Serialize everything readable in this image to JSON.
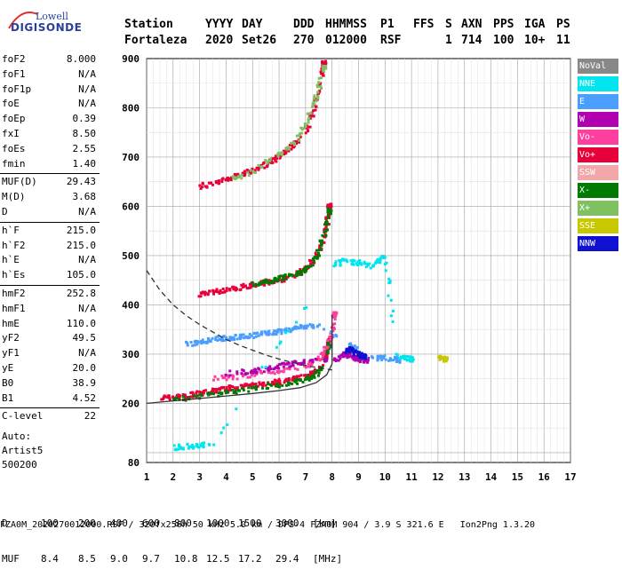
{
  "logo": {
    "brand_top": "Lowell",
    "brand_bottom": "DIGISONDE"
  },
  "header": {
    "labels": [
      "Station",
      "YYYY",
      "DAY",
      "DDD",
      "HHMMSS",
      "P1",
      "FFS",
      "S",
      "AXN",
      "PPS",
      "IGA",
      "PS"
    ],
    "values": [
      "Fortaleza",
      "2020",
      "Set26",
      "270",
      "012000",
      "RSF",
      "",
      "1",
      "714",
      "100",
      "10+",
      "11"
    ]
  },
  "params": [
    {
      "name": "foF2",
      "value": "8.000"
    },
    {
      "name": "foF1",
      "value": "N/A"
    },
    {
      "name": "foF1p",
      "value": "N/A"
    },
    {
      "name": "foE",
      "value": "N/A"
    },
    {
      "name": "foEp",
      "value": "0.39"
    },
    {
      "name": "fxI",
      "value": "8.50"
    },
    {
      "name": "foEs",
      "value": "2.55"
    },
    {
      "name": "fmin",
      "value": "1.40"
    },
    {
      "name": "MUF(D)",
      "value": "29.43"
    },
    {
      "name": "M(D)",
      "value": "3.68"
    },
    {
      "name": "D",
      "value": "N/A"
    },
    {
      "name": "h`F",
      "value": "215.0"
    },
    {
      "name": "h`F2",
      "value": "215.0"
    },
    {
      "name": "h`E",
      "value": "N/A"
    },
    {
      "name": "h`Es",
      "value": "105.0"
    },
    {
      "name": "hmF2",
      "value": "252.8"
    },
    {
      "name": "hmF1",
      "value": "N/A"
    },
    {
      "name": "hmE",
      "value": "110.0"
    },
    {
      "name": "yF2",
      "value": "49.5"
    },
    {
      "name": "yF1",
      "value": "N/A"
    },
    {
      "name": "yE",
      "value": "20.0"
    },
    {
      "name": "B0",
      "value": "38.9"
    },
    {
      "name": "B1",
      "value": "4.52"
    },
    {
      "name": "C-level",
      "value": "22"
    }
  ],
  "auto": {
    "line1": "Auto:",
    "line2": "Artist5",
    "line3": "500200"
  },
  "legend": [
    {
      "label": "NoVal",
      "color": "#888888"
    },
    {
      "label": "NNE",
      "color": "#00e5ee"
    },
    {
      "label": "E",
      "color": "#4a9eff"
    },
    {
      "label": "W",
      "color": "#b000b0"
    },
    {
      "label": "Vo-",
      "color": "#ff3fa0"
    },
    {
      "label": "Vo+",
      "color": "#e8003a"
    },
    {
      "label": "SSW",
      "color": "#f2a8a8"
    },
    {
      "label": "X-",
      "color": "#007a00"
    },
    {
      "label": "X+",
      "color": "#7fc060"
    },
    {
      "label": "SSE",
      "color": "#c8c800"
    },
    {
      "label": "NNW",
      "color": "#1010d0"
    }
  ],
  "footer": {
    "d_label": "D",
    "d_values": [
      "100",
      "200",
      "400",
      "600",
      "800",
      "1000",
      "1500",
      "3000",
      "[km]"
    ],
    "muf_label": "MUF",
    "muf_values": [
      "8.4",
      "8.5",
      "9.0",
      "9.7",
      "10.8",
      "12.5",
      "17.2",
      "29.4",
      "[MHz]"
    ],
    "file_line": "FZA0M_2020270012000.RSF / 320fx256h 50 kHz 5.0 km / DPS-4 FZA0M 904 / 3.9 S 321.6 E   Ion2Png 1.3.20"
  },
  "chart_data": {
    "type": "scatter",
    "title": "",
    "xlabel": "",
    "ylabel": "",
    "xlim": [
      1,
      17
    ],
    "ylim": [
      80,
      900
    ],
    "x_ticks": [
      1,
      2,
      3,
      4,
      5,
      6,
      7,
      8,
      9,
      10,
      11,
      12,
      13,
      14,
      15,
      16,
      17
    ],
    "y_ticks": [
      80,
      200,
      300,
      400,
      500,
      600,
      700,
      800,
      900
    ],
    "grid": true,
    "legend_position": "right",
    "series": [
      {
        "color": "#e8003a",
        "points": [
          [
            1.5,
            210
          ],
          [
            2,
            212
          ],
          [
            2.5,
            215
          ],
          [
            3,
            220
          ],
          [
            3.5,
            225
          ],
          [
            4,
            230
          ],
          [
            4.5,
            233
          ],
          [
            5,
            236
          ],
          [
            5.5,
            240
          ],
          [
            6,
            244
          ],
          [
            6.5,
            250
          ],
          [
            7,
            255
          ],
          [
            7.3,
            262
          ],
          [
            7.6,
            275
          ],
          [
            7.8,
            300
          ],
          [
            7.9,
            330
          ]
        ]
      },
      {
        "color": "#007a00",
        "points": [
          [
            2,
            208
          ],
          [
            3,
            214
          ],
          [
            4,
            222
          ],
          [
            5,
            230
          ],
          [
            6,
            238
          ],
          [
            6.8,
            246
          ],
          [
            7.2,
            252
          ],
          [
            7.6,
            268
          ],
          [
            7.9,
            320
          ]
        ]
      },
      {
        "color": "#ff3fa0",
        "points": [
          [
            3.5,
            250
          ],
          [
            4.5,
            255
          ],
          [
            5.5,
            262
          ],
          [
            6.5,
            268
          ],
          [
            7.3,
            282
          ],
          [
            7.7,
            300
          ],
          [
            8,
            340
          ],
          [
            8.1,
            380
          ]
        ]
      },
      {
        "color": "#b000b0",
        "points": [
          [
            4,
            260
          ],
          [
            5,
            265
          ],
          [
            5.5,
            270
          ],
          [
            6,
            275
          ],
          [
            6.5,
            280
          ],
          [
            7,
            285
          ],
          [
            8.2,
            290
          ],
          [
            8.5,
            300
          ],
          [
            8.7,
            295
          ],
          [
            9,
            290
          ],
          [
            9.3,
            288
          ]
        ]
      },
      {
        "color": "#4a9eff",
        "points": [
          [
            2.5,
            320
          ],
          [
            3,
            325
          ],
          [
            3.5,
            330
          ],
          [
            4,
            332
          ],
          [
            4.5,
            335
          ],
          [
            5,
            338
          ],
          [
            5.5,
            342
          ],
          [
            6,
            345
          ],
          [
            6.5,
            350
          ],
          [
            7,
            355
          ],
          [
            7.5,
            360
          ],
          [
            9.5,
            290
          ],
          [
            10,
            292
          ],
          [
            10.5,
            288
          ]
        ]
      },
      {
        "color": "#00e5ee",
        "points": [
          [
            2,
            110
          ],
          [
            2.5,
            112
          ],
          [
            3,
            115
          ],
          [
            3.5,
            118
          ],
          [
            8,
            480
          ],
          [
            8.5,
            490
          ],
          [
            9,
            485
          ],
          [
            9.5,
            478
          ],
          [
            10,
            500
          ],
          [
            10.5,
            295
          ],
          [
            11,
            290
          ]
        ]
      },
      {
        "color": "#e8003a",
        "points": [
          [
            3,
            420
          ],
          [
            3.5,
            425
          ],
          [
            4,
            430
          ],
          [
            4.5,
            435
          ],
          [
            5,
            440
          ],
          [
            5.5,
            445
          ],
          [
            6,
            450
          ],
          [
            6.5,
            460
          ],
          [
            7,
            470
          ],
          [
            7.3,
            490
          ],
          [
            7.6,
            520
          ],
          [
            7.8,
            560
          ],
          [
            7.9,
            600
          ]
        ]
      },
      {
        "color": "#007a00",
        "points": [
          [
            5,
            440
          ],
          [
            5.5,
            446
          ],
          [
            6,
            452
          ],
          [
            6.5,
            460
          ],
          [
            7,
            470
          ],
          [
            7.4,
            495
          ],
          [
            7.7,
            540
          ],
          [
            7.9,
            590
          ]
        ]
      },
      {
        "color": "#e8003a",
        "points": [
          [
            3,
            640
          ],
          [
            3.5,
            648
          ],
          [
            4,
            655
          ],
          [
            4.5,
            662
          ],
          [
            5,
            672
          ],
          [
            5.5,
            685
          ],
          [
            6,
            700
          ],
          [
            6.5,
            720
          ],
          [
            7,
            750
          ],
          [
            7.3,
            790
          ],
          [
            7.5,
            840
          ],
          [
            7.7,
            890
          ]
        ]
      },
      {
        "color": "#7fc060",
        "points": [
          [
            4,
            650
          ],
          [
            5,
            670
          ],
          [
            6,
            705
          ],
          [
            6.6,
            730
          ],
          [
            7,
            765
          ],
          [
            7.4,
            820
          ],
          [
            7.7,
            880
          ]
        ]
      },
      {
        "color": "#1010d0",
        "points": [
          [
            8.5,
            305
          ],
          [
            8.7,
            310
          ],
          [
            9,
            300
          ],
          [
            9.2,
            295
          ]
        ]
      },
      {
        "color": "#c8c800",
        "points": [
          [
            12,
            292
          ],
          [
            12.3,
            290
          ]
        ]
      }
    ],
    "curves": [
      {
        "style": "solid",
        "points": [
          [
            1,
            200
          ],
          [
            2,
            205
          ],
          [
            3,
            210
          ],
          [
            4,
            215
          ],
          [
            5,
            220
          ],
          [
            6,
            226
          ],
          [
            6.8,
            232
          ],
          [
            7.4,
            242
          ],
          [
            7.8,
            258
          ],
          [
            8,
            280
          ],
          [
            8,
            330
          ],
          [
            8,
            380
          ]
        ]
      },
      {
        "style": "dashed",
        "points": [
          [
            1,
            470
          ],
          [
            1.5,
            430
          ],
          [
            2,
            400
          ],
          [
            2.5,
            378
          ],
          [
            3,
            360
          ],
          [
            3.5,
            345
          ],
          [
            4,
            330
          ],
          [
            4.5,
            318
          ],
          [
            5,
            308
          ],
          [
            5.5,
            298
          ],
          [
            6,
            290
          ],
          [
            6.5,
            283
          ],
          [
            7,
            277
          ],
          [
            7.5,
            272
          ],
          [
            8,
            268
          ]
        ]
      }
    ]
  }
}
